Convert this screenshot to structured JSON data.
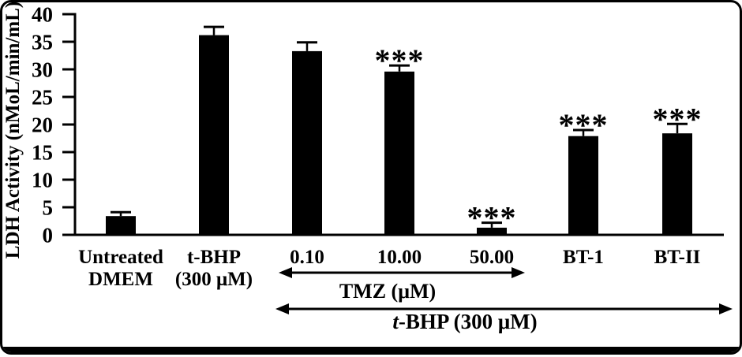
{
  "figure": {
    "background": "#ffffff",
    "border_color": "#000000",
    "bar_color": "#000000",
    "text_color": "#000000"
  },
  "chart_data": {
    "type": "bar",
    "title": "",
    "xlabel": "",
    "ylabel": "LDH Activity (nMoL/min/mL)",
    "ylim": [
      0,
      40
    ],
    "ytick_step": 5,
    "yticks": [
      0,
      5,
      10,
      15,
      20,
      25,
      30,
      35,
      40
    ],
    "grid": false,
    "legend": false,
    "categories": [
      "Untreated DMEM",
      "t-BHP (300 μM)",
      "0.10",
      "10.00",
      "50.00",
      "BT-1",
      "BT-II"
    ],
    "category_label_lines": [
      [
        "Untreated",
        "DMEM"
      ],
      [
        "t-BHP",
        "(300 μM)"
      ],
      [
        "0.10"
      ],
      [
        "10.00"
      ],
      [
        "50.00"
      ],
      [
        "BT-1"
      ],
      [
        "BT-II"
      ]
    ],
    "values": [
      3.4,
      36.2,
      33.3,
      29.6,
      1.3,
      17.9,
      18.4
    ],
    "errors": [
      0.7,
      1.5,
      1.6,
      1.1,
      0.9,
      1.1,
      1.7
    ],
    "significance": [
      "",
      "",
      "",
      "***",
      "***",
      "***",
      "***"
    ],
    "group_arrows": [
      {
        "id": "tmz",
        "label": "TMZ (μM)",
        "italic_prefix": "",
        "label_rest": "TMZ (μM)",
        "spans_categories": [
          "0.10",
          "50.00"
        ]
      },
      {
        "id": "tbhp",
        "label": "t-BHP (300 μM)",
        "italic_prefix": "t",
        "label_rest": "-BHP (300 μM)",
        "spans_categories": [
          "0.10",
          "BT-II"
        ]
      }
    ]
  }
}
